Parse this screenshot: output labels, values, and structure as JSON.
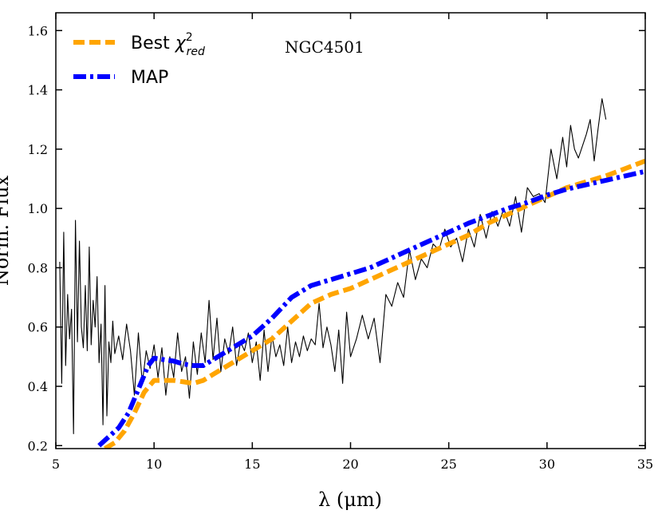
{
  "chart_data": {
    "type": "line",
    "annotation": "NGC4501",
    "xlabel": "λ (μm)",
    "ylabel": "Norm. Flux",
    "xlim": [
      5,
      35
    ],
    "ylim": [
      0.19,
      1.66
    ],
    "xticks": [
      5,
      10,
      15,
      20,
      25,
      30,
      35
    ],
    "yticks": [
      0.2,
      0.4,
      0.6,
      0.8,
      1.0,
      1.2,
      1.4,
      1.6
    ],
    "ytick_labels": [
      "0.2",
      "0.4",
      "0.6",
      "0.8",
      "1.0",
      "1.2",
      "1.4",
      "1.6"
    ],
    "grid": false,
    "legend_position": "top-left",
    "colors": {
      "observed": "#000000",
      "best_fit": "#ffa500",
      "map": "#0000ff"
    },
    "series": [
      {
        "style": "solid-thin",
        "color": "#000000",
        "x": [
          5.2,
          5.3,
          5.4,
          5.5,
          5.6,
          5.7,
          5.8,
          5.9,
          6.0,
          6.1,
          6.2,
          6.3,
          6.4,
          6.5,
          6.6,
          6.7,
          6.8,
          6.9,
          7.0,
          7.1,
          7.2,
          7.3,
          7.4,
          7.5,
          7.6,
          7.7,
          7.8,
          7.9,
          8.0,
          8.2,
          8.4,
          8.6,
          8.8,
          9.0,
          9.2,
          9.4,
          9.6,
          9.8,
          10.0,
          10.2,
          10.4,
          10.6,
          10.8,
          11.0,
          11.2,
          11.4,
          11.6,
          11.8,
          12.0,
          12.2,
          12.4,
          12.6,
          12.8,
          13.0,
          13.2,
          13.4,
          13.6,
          13.8,
          14.0,
          14.2,
          14.4,
          14.6,
          14.8,
          15.0,
          15.2,
          15.4,
          15.6,
          15.8,
          16.0,
          16.2,
          16.4,
          16.6,
          16.8,
          17.0,
          17.2,
          17.4,
          17.6,
          17.8,
          18.0,
          18.2,
          18.4,
          18.6,
          18.8,
          19.0,
          19.2,
          19.4,
          19.6,
          19.8,
          20.0,
          20.3,
          20.6,
          20.9,
          21.2,
          21.5,
          21.8,
          22.1,
          22.4,
          22.7,
          23.0,
          23.3,
          23.6,
          23.9,
          24.2,
          24.5,
          24.8,
          25.1,
          25.4,
          25.7,
          26.0,
          26.3,
          26.6,
          26.9,
          27.2,
          27.5,
          27.8,
          28.1,
          28.4,
          28.7,
          29.0,
          29.3,
          29.6,
          29.9,
          30.2,
          30.5,
          30.8,
          31.0,
          31.2,
          31.4,
          31.6,
          31.8,
          32.0,
          32.2,
          32.4,
          32.6,
          32.8,
          33.0
        ],
        "y": [
          0.82,
          0.41,
          0.92,
          0.47,
          0.71,
          0.56,
          0.66,
          0.24,
          0.96,
          0.55,
          0.89,
          0.6,
          0.53,
          0.74,
          0.52,
          0.87,
          0.54,
          0.69,
          0.6,
          0.77,
          0.48,
          0.61,
          0.27,
          0.74,
          0.3,
          0.55,
          0.48,
          0.62,
          0.51,
          0.57,
          0.49,
          0.61,
          0.52,
          0.37,
          0.58,
          0.41,
          0.52,
          0.46,
          0.54,
          0.43,
          0.53,
          0.37,
          0.5,
          0.43,
          0.58,
          0.45,
          0.5,
          0.36,
          0.55,
          0.44,
          0.58,
          0.48,
          0.69,
          0.49,
          0.63,
          0.45,
          0.56,
          0.51,
          0.6,
          0.47,
          0.55,
          0.52,
          0.58,
          0.48,
          0.55,
          0.42,
          0.59,
          0.45,
          0.57,
          0.5,
          0.54,
          0.47,
          0.6,
          0.48,
          0.55,
          0.5,
          0.57,
          0.52,
          0.56,
          0.54,
          0.68,
          0.53,
          0.6,
          0.54,
          0.45,
          0.59,
          0.41,
          0.65,
          0.5,
          0.56,
          0.64,
          0.56,
          0.63,
          0.48,
          0.71,
          0.67,
          0.75,
          0.7,
          0.86,
          0.76,
          0.83,
          0.8,
          0.88,
          0.86,
          0.93,
          0.87,
          0.9,
          0.82,
          0.93,
          0.87,
          0.98,
          0.9,
          0.99,
          0.94,
          1.0,
          0.94,
          1.04,
          0.92,
          1.07,
          1.04,
          1.05,
          1.02,
          1.2,
          1.1,
          1.24,
          1.14,
          1.28,
          1.2,
          1.17,
          1.21,
          1.25,
          1.3,
          1.16,
          1.27,
          1.37,
          1.3
        ]
      },
      {
        "name": "Best χ²red",
        "style": "dashed",
        "color": "#ffa500",
        "x": [
          7.5,
          8.0,
          8.5,
          9.0,
          9.5,
          10.0,
          10.5,
          11.0,
          11.5,
          12.0,
          12.5,
          13.0,
          14.0,
          15.0,
          16.0,
          17.0,
          18.0,
          19.0,
          20.0,
          21.0,
          22.0,
          23.0,
          24.0,
          25.0,
          26.0,
          27.0,
          28.0,
          29.0,
          30.0,
          31.0,
          32.0,
          33.0,
          34.0,
          35.0
        ],
        "y": [
          0.19,
          0.21,
          0.25,
          0.31,
          0.38,
          0.42,
          0.42,
          0.42,
          0.415,
          0.41,
          0.42,
          0.44,
          0.48,
          0.52,
          0.56,
          0.62,
          0.68,
          0.71,
          0.73,
          0.76,
          0.79,
          0.82,
          0.85,
          0.88,
          0.91,
          0.95,
          0.98,
          1.01,
          1.04,
          1.07,
          1.09,
          1.11,
          1.135,
          1.16
        ]
      },
      {
        "name": "MAP",
        "style": "dashdot",
        "color": "#0000ff",
        "x": [
          7.2,
          7.7,
          8.2,
          8.7,
          9.2,
          9.7,
          10.0,
          10.5,
          11.0,
          11.5,
          12.0,
          12.5,
          13.0,
          14.0,
          15.0,
          16.0,
          17.0,
          18.0,
          19.0,
          20.0,
          21.0,
          22.0,
          23.0,
          24.0,
          25.0,
          26.0,
          27.0,
          28.0,
          29.0,
          30.0,
          31.0,
          32.0,
          33.0,
          34.0,
          35.0
        ],
        "y": [
          0.2,
          0.23,
          0.26,
          0.31,
          0.39,
          0.47,
          0.495,
          0.49,
          0.485,
          0.475,
          0.47,
          0.47,
          0.49,
          0.53,
          0.57,
          0.63,
          0.7,
          0.74,
          0.76,
          0.78,
          0.8,
          0.83,
          0.86,
          0.89,
          0.92,
          0.95,
          0.975,
          1.0,
          1.02,
          1.045,
          1.065,
          1.08,
          1.095,
          1.11,
          1.125
        ]
      }
    ]
  }
}
